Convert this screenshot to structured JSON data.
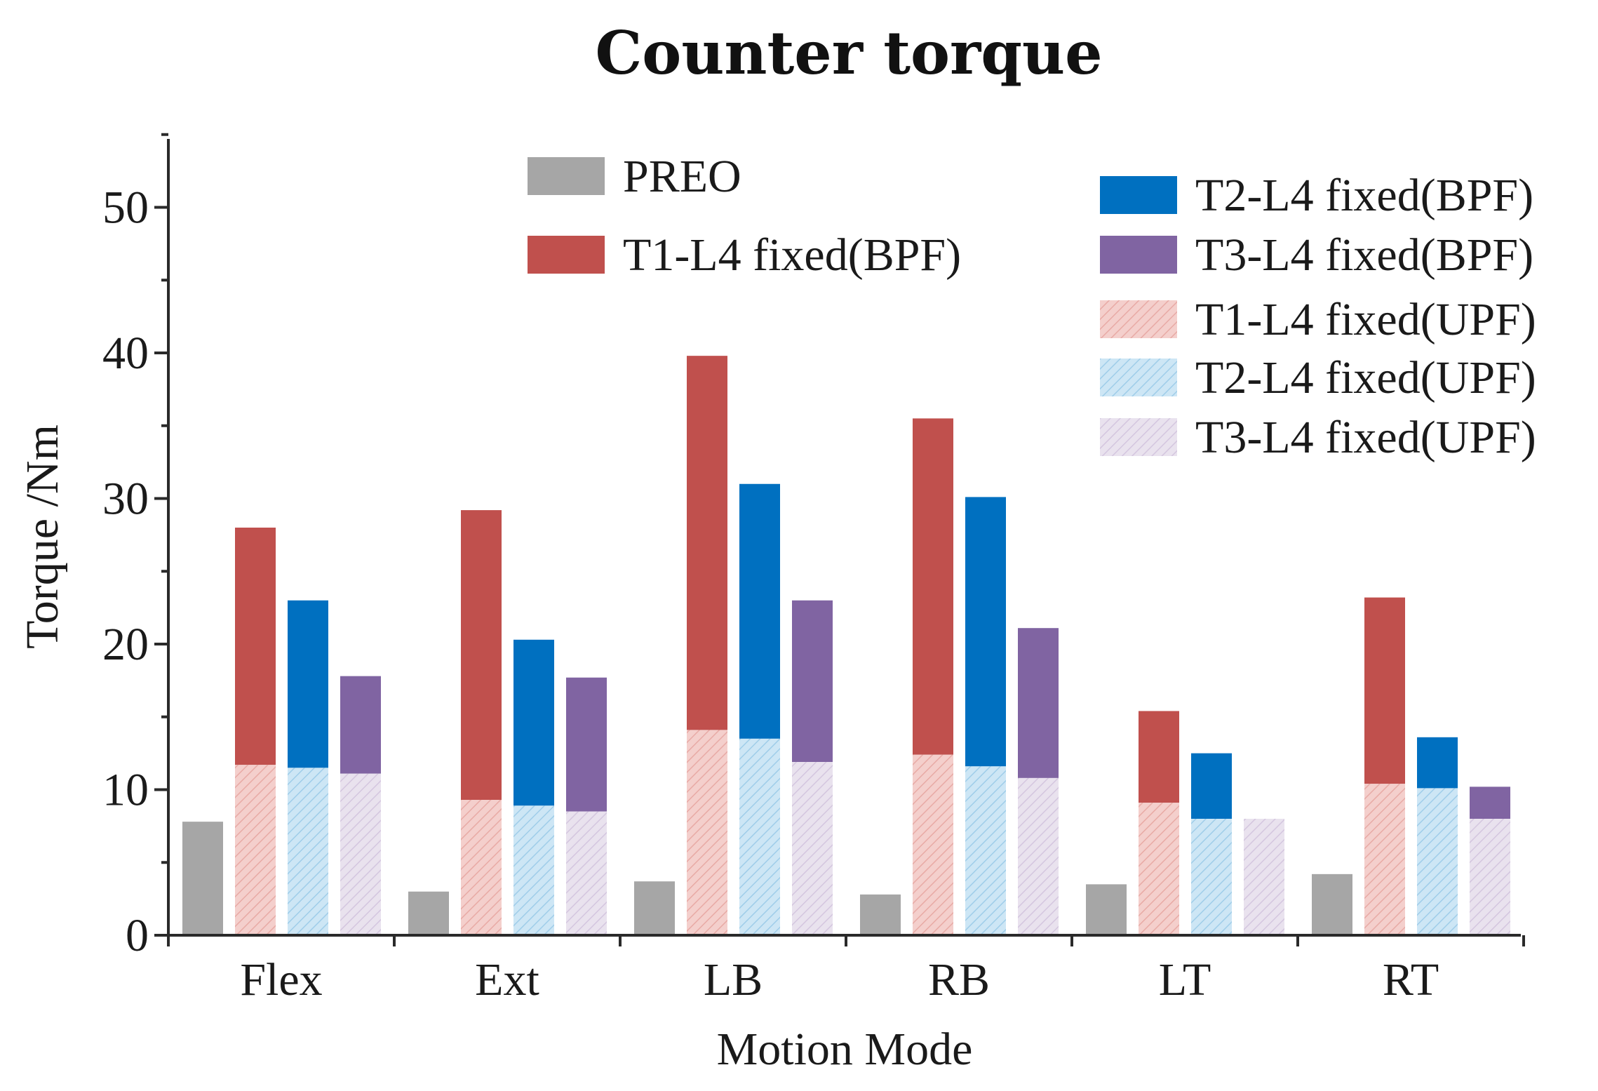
{
  "chart_data": {
    "type": "bar",
    "title": "Counter torque",
    "xlabel": "Motion Mode",
    "ylabel": "Torque /Nm",
    "ylim": [
      0,
      55
    ],
    "yticks": [
      0,
      10,
      20,
      30,
      40,
      50
    ],
    "categories": [
      "Flex",
      "Ext",
      "LB",
      "RB",
      "LT",
      "RT"
    ],
    "preo": {
      "name": "PREO",
      "color": "#a6a6a6",
      "values": [
        7.8,
        3.0,
        3.7,
        2.8,
        3.5,
        4.2
      ]
    },
    "groups": [
      {
        "bpf": {
          "name": "T1-L4 fixed(BPF)",
          "color": "#c0504d",
          "values": [
            28.0,
            29.2,
            39.8,
            35.5,
            15.4,
            23.2
          ]
        },
        "upf": {
          "name": "T1-L4 fixed(UPF)",
          "color": "#f4cfcc",
          "stripe": "#e8aaa5",
          "values": [
            11.7,
            9.3,
            14.1,
            12.4,
            9.1,
            10.4
          ]
        }
      },
      {
        "bpf": {
          "name": "T2-L4 fixed(BPF)",
          "color": "#0070c0",
          "values": [
            23.0,
            20.3,
            31.0,
            30.1,
            12.5,
            13.6
          ]
        },
        "upf": {
          "name": "T2-L4 fixed(UPF)",
          "color": "#cde6f5",
          "stripe": "#9fcde9",
          "values": [
            11.5,
            8.9,
            13.5,
            11.6,
            8.0,
            10.1
          ]
        }
      },
      {
        "bpf": {
          "name": "T3-L4 fixed(BPF)",
          "color": "#8064a2",
          "values": [
            17.8,
            17.7,
            23.0,
            21.1,
            0,
            10.2
          ]
        },
        "upf": {
          "name": "T3-L4 fixed(UPF)",
          "color": "#e9e2ee",
          "stripe": "#d4c6df",
          "values": [
            11.1,
            8.5,
            11.9,
            10.8,
            8.0,
            8.0
          ]
        }
      }
    ],
    "grid": false,
    "legend_position": "top-right"
  }
}
